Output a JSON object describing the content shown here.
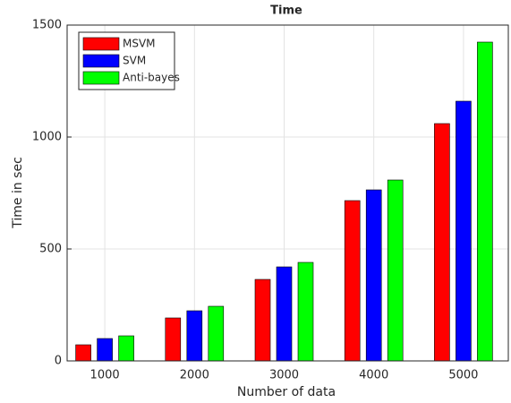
{
  "chart_data": {
    "type": "bar",
    "title": "Time",
    "xlabel": "Number of data",
    "ylabel": "Time in sec",
    "categories": [
      1000,
      2000,
      3000,
      4000,
      5000
    ],
    "series": [
      {
        "name": "MSVM",
        "color": "#ff0000",
        "values": [
          72,
          192,
          364,
          716,
          1060
        ]
      },
      {
        "name": "SVM",
        "color": "#0000ff",
        "values": [
          100,
          224,
          420,
          764,
          1160
        ]
      },
      {
        "name": "Anti-bayes",
        "color": "#00ff00",
        "values": [
          112,
          244,
          440,
          808,
          1424
        ]
      }
    ],
    "ylim": [
      0,
      1500
    ],
    "yticks": [
      0,
      500,
      1000,
      1500
    ],
    "grid": true,
    "legend": "top-left"
  }
}
